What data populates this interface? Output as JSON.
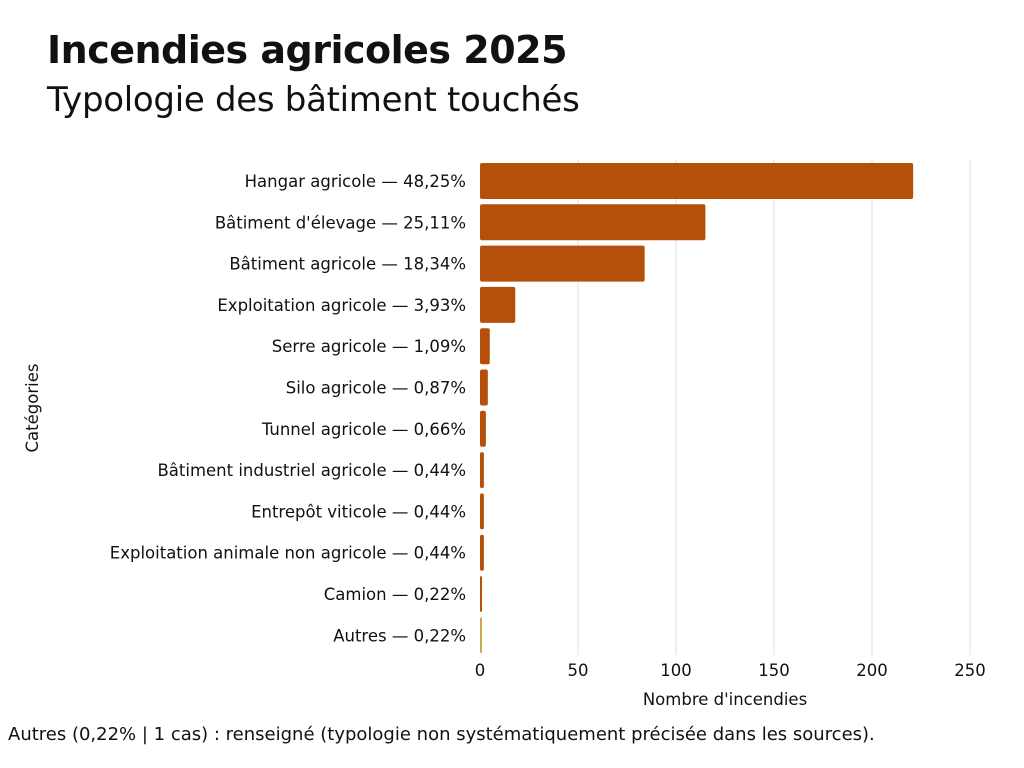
{
  "title": "Incendies agricoles 2025",
  "subtitle": "Typologie des bâtiment touchés",
  "footnote": "Autres (0,22% | 1 cas) :  renseigné (typologie non systématiquement précisée dans les sources).",
  "colors": {
    "bar": "#b5500b",
    "bar_last": "#c9a84a",
    "grid": "#dddddd"
  },
  "chart_data": {
    "type": "bar",
    "orientation": "horizontal",
    "categories": [
      "Hangar agricole — 48,25%",
      "Bâtiment d'élevage — 25,11%",
      "Bâtiment agricole — 18,34%",
      "Exploitation agricole — 3,93%",
      "Serre agricole — 1,09%",
      "Silo agricole — 0,87%",
      "Tunnel agricole — 0,66%",
      "Bâtiment industriel agricole — 0,44%",
      "Entrepôt viticole — 0,44%",
      "Exploitation animale non agricole — 0,44%",
      "Camion — 0,22%",
      "Autres — 0,22%"
    ],
    "values": [
      221,
      115,
      84,
      18,
      5,
      4,
      3,
      2,
      2,
      2,
      1,
      1
    ],
    "xlabel": "Nombre d'incendies",
    "ylabel": "Catégories",
    "xlim": [
      0,
      250
    ],
    "xticks": [
      "0",
      "50",
      "100",
      "150",
      "200",
      "250"
    ],
    "xtick_values": [
      0,
      50,
      100,
      150,
      200,
      250
    ],
    "grid": true,
    "legend": "none"
  }
}
